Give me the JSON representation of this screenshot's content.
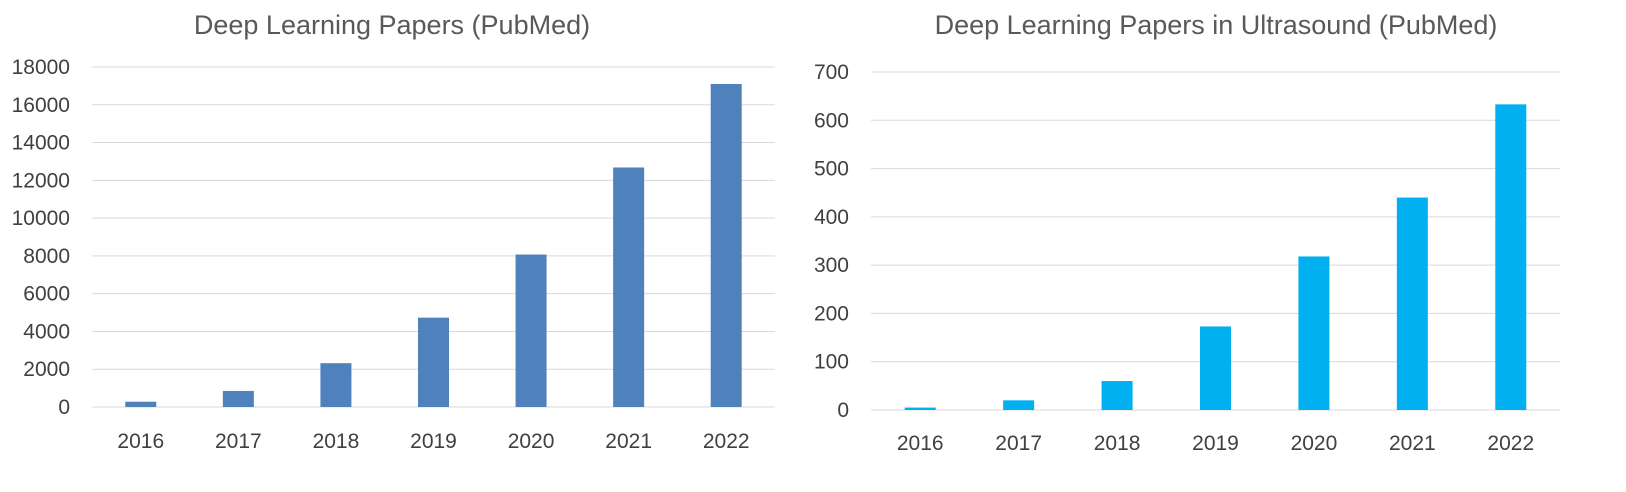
{
  "chart_data": [
    {
      "type": "bar",
      "title": "Deep Learning Papers (PubMed)",
      "xlabel": "",
      "ylabel": "",
      "categories": [
        "2016",
        "2017",
        "2018",
        "2019",
        "2020",
        "2021",
        "2022"
      ],
      "series": [
        {
          "values": [
            280,
            850,
            2320,
            4730,
            8070,
            12680,
            17100
          ],
          "color": "#4f81bd"
        }
      ],
      "ylim": [
        0,
        18000
      ],
      "yticks": [
        0,
        2000,
        4000,
        6000,
        8000,
        10000,
        12000,
        14000,
        16000,
        18000
      ],
      "grid": true,
      "legend": "none"
    },
    {
      "type": "bar",
      "title": "Deep Learning Papers in Ultrasound (PubMed)",
      "xlabel": "",
      "ylabel": "",
      "categories": [
        "2016",
        "2017",
        "2018",
        "2019",
        "2020",
        "2021",
        "2022"
      ],
      "series": [
        {
          "values": [
            5,
            20,
            60,
            173,
            318,
            440,
            633
          ],
          "color": "#00b0f0"
        }
      ],
      "ylim": [
        0,
        700
      ],
      "yticks": [
        0,
        100,
        200,
        300,
        400,
        500,
        600,
        700
      ],
      "grid": true,
      "legend": "none"
    }
  ]
}
